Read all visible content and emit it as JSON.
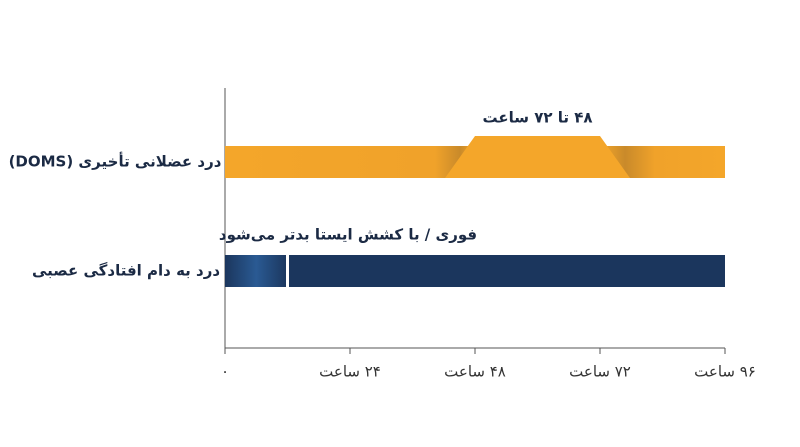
{
  "chart_data": {
    "type": "timeline",
    "series": [
      {
        "name": "درد عضلانی تأخیری (DOMS)",
        "color": "#f4a62a",
        "start": 0,
        "end": 96,
        "peak_start": 48,
        "peak_end": 72,
        "annotation": "۴۸ تا ۷۲ ساعت"
      },
      {
        "name": "درد به دام افتادگی عصبی",
        "color": "#1b365d",
        "start": 0,
        "end": 96,
        "onset_end": 12,
        "annotation": "فوری / با کشش ایستا بدتر می‌شود"
      }
    ],
    "xlim": [
      0,
      96
    ],
    "xticks": [
      {
        "value": 0,
        "label": "۰"
      },
      {
        "value": 24,
        "label": "۲۴ ساعت"
      },
      {
        "value": 48,
        "label": "۴۸ ساعت"
      },
      {
        "value": 72,
        "label": "۷۲ ساعت"
      },
      {
        "value": 96,
        "label": "۹۶ ساعت"
      }
    ]
  }
}
